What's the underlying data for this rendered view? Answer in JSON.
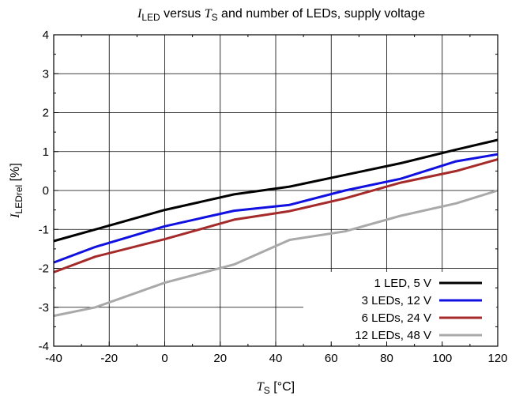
{
  "chart_data": {
    "type": "line",
    "title": {
      "sym1": "I",
      "sub1": "LED",
      "middle": " versus ",
      "sym2": "T",
      "sub2": "S",
      "tail": " and number of LEDs, supply voltage"
    },
    "xlabel": {
      "sym": "T",
      "sub": "S",
      "unit": " [°C]"
    },
    "ylabel": {
      "sym": "I",
      "sub": "LEDrel",
      "unit": " [%]"
    },
    "xlim": [
      -40,
      120
    ],
    "ylim": [
      -4,
      4
    ],
    "xticks": [
      "-40",
      "-20",
      "0",
      "20",
      "40",
      "60",
      "80",
      "100",
      "120"
    ],
    "yticks": [
      "-4",
      "-3",
      "-2",
      "-1",
      "0",
      "1",
      "2",
      "3",
      "4"
    ],
    "grid": true,
    "legend_position": "bottom-right",
    "series": [
      {
        "name": "1 LED, 5 V",
        "color": "#000000",
        "x": [
          -40,
          -25,
          0,
          25,
          45,
          65,
          85,
          105,
          120
        ],
        "y": [
          -1.3,
          -1.0,
          -0.5,
          -0.1,
          0.1,
          0.4,
          0.7,
          1.05,
          1.3
        ]
      },
      {
        "name": "3 LEDs, 12 V",
        "color": "#1010e0",
        "x": [
          -40,
          -25,
          0,
          25,
          45,
          65,
          85,
          105,
          120
        ],
        "y": [
          -1.85,
          -1.45,
          -0.92,
          -0.52,
          -0.37,
          0.0,
          0.3,
          0.75,
          0.93
        ]
      },
      {
        "name": "6 LEDs, 24 V",
        "color": "#a52a2a",
        "x": [
          -40,
          -25,
          0,
          25,
          45,
          65,
          85,
          105,
          120
        ],
        "y": [
          -2.1,
          -1.7,
          -1.25,
          -0.75,
          -0.53,
          -0.2,
          0.2,
          0.5,
          0.8
        ]
      },
      {
        "name": "12 LEDs, 48 V",
        "color": "#a9a9a9",
        "x": [
          -40,
          -25,
          0,
          25,
          45,
          65,
          85,
          105,
          120
        ],
        "y": [
          -3.22,
          -3.0,
          -2.37,
          -1.9,
          -1.27,
          -1.05,
          -0.65,
          -0.33,
          0.0
        ]
      }
    ]
  }
}
